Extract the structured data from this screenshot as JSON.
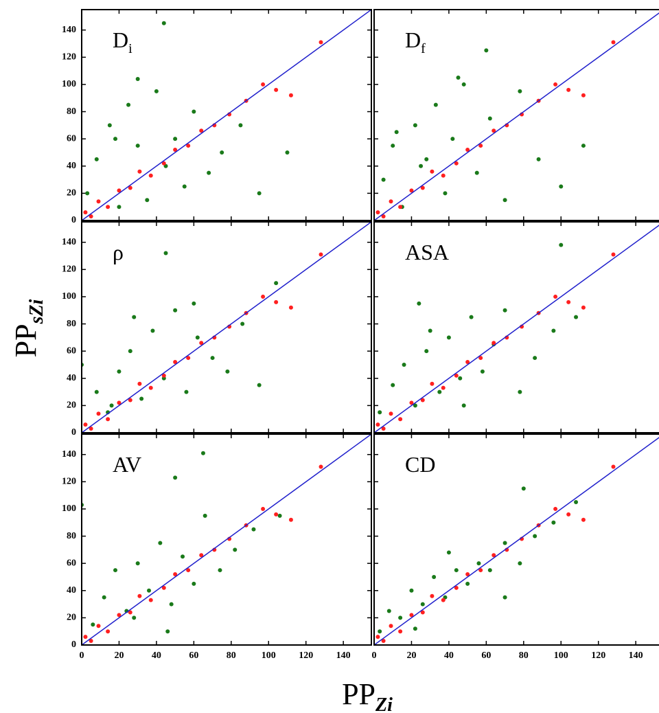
{
  "chart_data": {
    "type": "scatter",
    "xlabel": {
      "main": "PP",
      "sub": "Zi"
    },
    "ylabel": {
      "main": "PP",
      "sub": "sZi"
    },
    "xlim": [
      0,
      155
    ],
    "ylim": [
      0,
      155
    ],
    "xticks": [
      0,
      20,
      40,
      60,
      80,
      100,
      120,
      140
    ],
    "yticks": [
      0,
      20,
      40,
      60,
      80,
      100,
      120,
      140
    ],
    "panels": [
      {
        "label": {
          "main": "D",
          "sub": "i"
        },
        "series": [
          {
            "color": "#1a7a1a",
            "x": [
              3,
              8,
              15,
              20,
              25,
              30,
              35,
              40,
              45,
              50,
              55,
              60,
              68,
              75,
              85,
              95,
              110,
              44,
              18,
              30
            ],
            "y": [
              20,
              45,
              70,
              10,
              85,
              55,
              15,
              95,
              40,
              60,
              25,
              80,
              35,
              50,
              70,
              20,
              50,
              145,
              60,
              104
            ]
          },
          {
            "color": "#ff2020",
            "x": [
              2,
              5,
              9,
              14,
              20,
              26,
              31,
              37,
              44,
              50,
              57,
              64,
              71,
              79,
              88,
              97,
              104,
              112,
              128
            ],
            "y": [
              6,
              3,
              14,
              10,
              22,
              24,
              36,
              33,
              42,
              52,
              55,
              66,
              70,
              78,
              88,
              100,
              96,
              92,
              131
            ]
          },
          {
            "color": "#1f1fcc",
            "line": true,
            "x": [
              0,
              155
            ],
            "y": [
              0,
              155
            ]
          }
        ]
      },
      {
        "label": {
          "main": "D",
          "sub": "f"
        },
        "series": [
          {
            "color": "#1a7a1a",
            "x": [
              5,
              10,
              15,
              22,
              28,
              33,
              38,
              42,
              48,
              55,
              62,
              70,
              78,
              88,
              100,
              112,
              60,
              25,
              12,
              45
            ],
            "y": [
              30,
              55,
              10,
              70,
              45,
              85,
              20,
              60,
              100,
              35,
              75,
              15,
              95,
              45,
              25,
              55,
              125,
              40,
              65,
              105
            ]
          },
          {
            "color": "#ff2020",
            "x": [
              2,
              5,
              9,
              14,
              20,
              26,
              31,
              37,
              44,
              50,
              57,
              64,
              71,
              79,
              88,
              97,
              104,
              112,
              128
            ],
            "y": [
              6,
              3,
              14,
              10,
              22,
              24,
              36,
              33,
              42,
              52,
              55,
              66,
              70,
              78,
              88,
              100,
              96,
              92,
              131
            ]
          },
          {
            "color": "#1f1fcc",
            "line": true,
            "x": [
              0,
              155
            ],
            "y": [
              0,
              155
            ]
          }
        ]
      },
      {
        "label": {
          "main": "ρ",
          "sub": ""
        },
        "series": [
          {
            "color": "#1a7a1a",
            "x": [
              0,
              8,
              14,
              20,
              26,
              32,
              38,
              44,
              50,
              56,
              62,
              70,
              78,
              86,
              95,
              104,
              45,
              28,
              16,
              60
            ],
            "y": [
              50,
              30,
              15,
              45,
              60,
              25,
              75,
              40,
              90,
              30,
              70,
              55,
              45,
              80,
              35,
              110,
              132,
              85,
              20,
              95
            ]
          },
          {
            "color": "#ff2020",
            "x": [
              2,
              5,
              9,
              14,
              20,
              26,
              31,
              37,
              44,
              50,
              57,
              64,
              71,
              79,
              88,
              97,
              104,
              112,
              128
            ],
            "y": [
              6,
              3,
              14,
              10,
              22,
              24,
              36,
              33,
              42,
              52,
              55,
              66,
              70,
              78,
              88,
              100,
              96,
              92,
              131
            ]
          },
          {
            "color": "#1f1fcc",
            "line": true,
            "x": [
              0,
              155
            ],
            "y": [
              0,
              155
            ]
          }
        ]
      },
      {
        "label": {
          "main": "ASA",
          "sub": ""
        },
        "series": [
          {
            "color": "#1a7a1a",
            "x": [
              3,
              10,
              16,
              22,
              28,
              35,
              40,
              46,
              52,
              58,
              64,
              70,
              78,
              86,
              96,
              108,
              100,
              30,
              48,
              24
            ],
            "y": [
              15,
              35,
              50,
              20,
              60,
              30,
              70,
              40,
              85,
              45,
              65,
              90,
              30,
              55,
              75,
              85,
              138,
              75,
              20,
              95
            ]
          },
          {
            "color": "#ff2020",
            "x": [
              2,
              5,
              9,
              14,
              20,
              26,
              31,
              37,
              44,
              50,
              57,
              64,
              71,
              79,
              88,
              97,
              104,
              112,
              128
            ],
            "y": [
              6,
              3,
              14,
              10,
              22,
              24,
              36,
              33,
              42,
              52,
              55,
              66,
              70,
              78,
              88,
              100,
              96,
              92,
              131
            ]
          },
          {
            "color": "#1f1fcc",
            "line": true,
            "x": [
              0,
              155
            ],
            "y": [
              0,
              155
            ]
          }
        ]
      },
      {
        "label": {
          "main": "AV",
          "sub": ""
        },
        "series": [
          {
            "color": "#1a7a1a",
            "x": [
              0,
              6,
              12,
              18,
              24,
              30,
              36,
              42,
              48,
              54,
              60,
              66,
              74,
              82,
              92,
              106,
              65,
              50,
              28,
              46
            ],
            "y": [
              103,
              15,
              35,
              55,
              25,
              60,
              40,
              75,
              30,
              65,
              45,
              95,
              55,
              70,
              85,
              95,
              141,
              123,
              20,
              10
            ]
          },
          {
            "color": "#ff2020",
            "x": [
              2,
              5,
              9,
              14,
              20,
              26,
              31,
              37,
              44,
              50,
              57,
              64,
              71,
              79,
              88,
              97,
              104,
              112,
              128
            ],
            "y": [
              6,
              3,
              14,
              10,
              22,
              24,
              36,
              33,
              42,
              52,
              55,
              66,
              70,
              78,
              88,
              100,
              96,
              92,
              131
            ]
          },
          {
            "color": "#1f1fcc",
            "line": true,
            "x": [
              0,
              155
            ],
            "y": [
              0,
              155
            ]
          }
        ]
      },
      {
        "label": {
          "main": "CD",
          "sub": ""
        },
        "series": [
          {
            "color": "#1a7a1a",
            "x": [
              3,
              8,
              14,
              20,
              26,
              32,
              38,
              44,
              50,
              56,
              62,
              70,
              78,
              86,
              96,
              108,
              80,
              40,
              70,
              22
            ],
            "y": [
              10,
              25,
              20,
              40,
              30,
              50,
              35,
              55,
              45,
              60,
              55,
              75,
              60,
              80,
              90,
              105,
              115,
              68,
              35,
              12
            ]
          },
          {
            "color": "#ff2020",
            "x": [
              2,
              5,
              9,
              14,
              20,
              26,
              31,
              37,
              44,
              50,
              57,
              64,
              71,
              79,
              88,
              97,
              104,
              112,
              128
            ],
            "y": [
              6,
              3,
              14,
              10,
              22,
              24,
              36,
              33,
              42,
              52,
              55,
              66,
              70,
              78,
              88,
              100,
              96,
              92,
              131
            ]
          },
          {
            "color": "#1f1fcc",
            "line": true,
            "x": [
              0,
              155
            ],
            "y": [
              0,
              155
            ]
          }
        ]
      }
    ]
  }
}
